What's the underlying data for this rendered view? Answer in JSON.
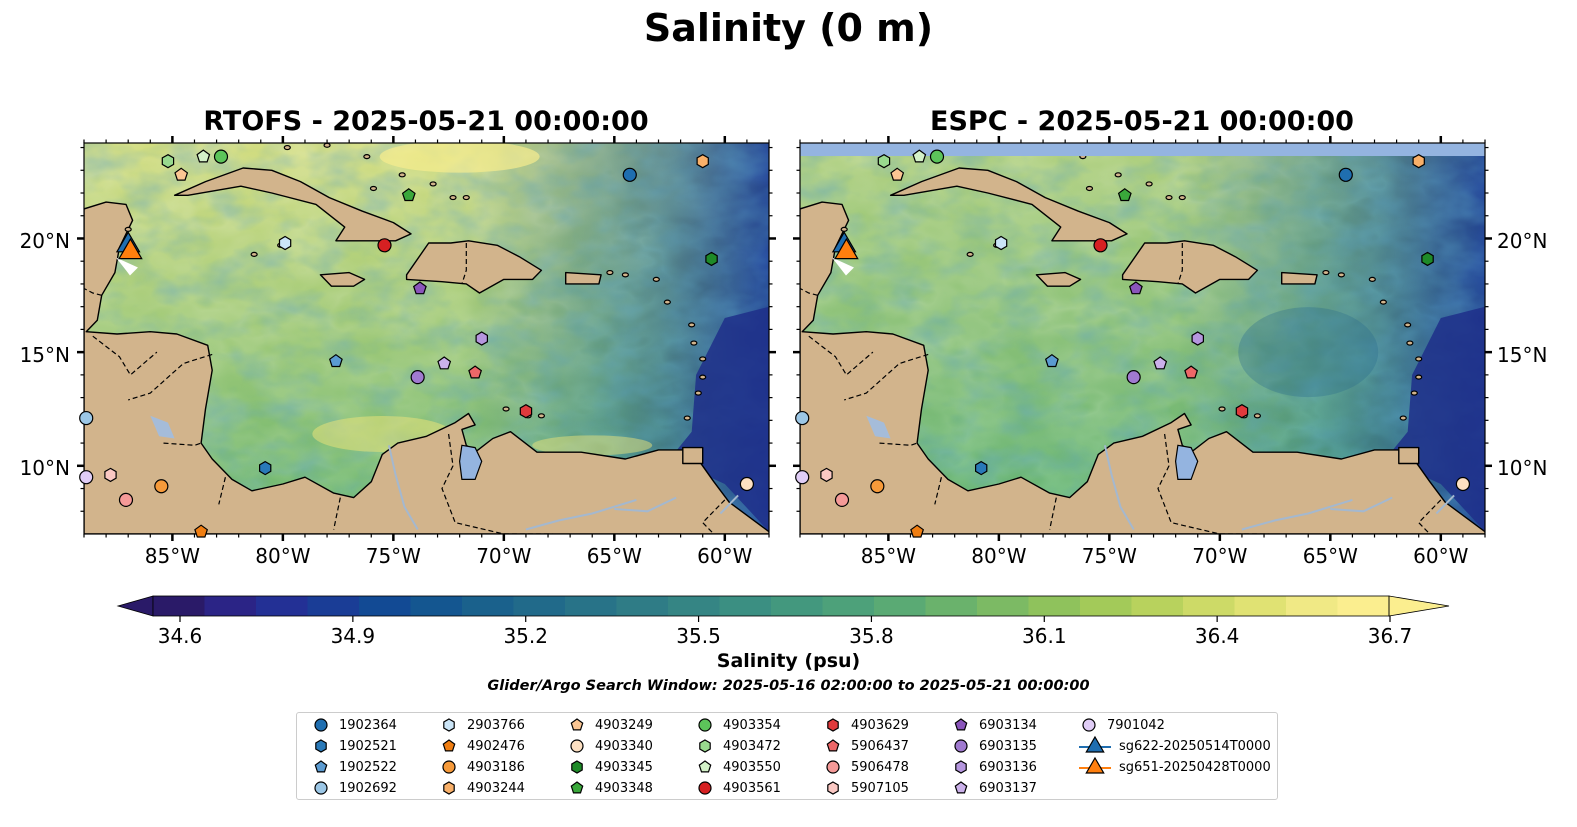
{
  "figure": {
    "title": "Salinity (0 m)",
    "search_window": "Glider/Argo Search Window: 2025-05-16 02:00:00 to 2025-05-21 00:00:00"
  },
  "panels": [
    {
      "title": "RTOFS - 2025-05-21 00:00:00"
    },
    {
      "title": "ESPC - 2025-05-21 00:00:00"
    }
  ],
  "axes": {
    "lon_labels": [
      "85°W",
      "80°W",
      "75°W",
      "70°W",
      "65°W",
      "60°W"
    ],
    "lon_values": [
      -85,
      -80,
      -75,
      -70,
      -65,
      -60
    ],
    "lat_labels": [
      "20°N",
      "15°N",
      "10°N"
    ],
    "lat_values": [
      20,
      15,
      10
    ],
    "lon_range": [
      -89,
      -58
    ],
    "lat_range": [
      7,
      24.2
    ]
  },
  "colorbar": {
    "label": "Salinity (psu)",
    "ticks": [
      "34.6",
      "34.9",
      "35.2",
      "35.5",
      "35.8",
      "36.1",
      "36.4",
      "36.7"
    ],
    "range": [
      34.6,
      36.7
    ],
    "extend": "both",
    "colormap": "haline",
    "colors": [
      "#2a1a68",
      "#2b2486",
      "#233095",
      "#1a3d96",
      "#124a94",
      "#145690",
      "#1a618c",
      "#216a8a",
      "#287388",
      "#2f7c86",
      "#358584",
      "#3b8f82",
      "#43987e",
      "#4da17a",
      "#5aaa74",
      "#6ab26c",
      "#7cba64",
      "#8fc25c",
      "#a3ca59",
      "#b8d25d",
      "#cdda67",
      "#e0e273",
      "#f0e985",
      "#fbee8f"
    ]
  },
  "legend": {
    "items": [
      {
        "label": "1902364",
        "marker": "circle",
        "color": "#1f6eb0"
      },
      {
        "label": "1902521",
        "marker": "hexagon",
        "color": "#2979b8"
      },
      {
        "label": "1902522",
        "marker": "pentagon",
        "color": "#5b9bd1"
      },
      {
        "label": "1902692",
        "marker": "circle",
        "color": "#9cc7e6"
      },
      {
        "label": "2903766",
        "marker": "hexagon",
        "color": "#cbe5f7"
      },
      {
        "label": "4902476",
        "marker": "pentagon",
        "color": "#f07e12"
      },
      {
        "label": "4903186",
        "marker": "circle",
        "color": "#f69a3a"
      },
      {
        "label": "4903244",
        "marker": "hexagon",
        "color": "#f9b069"
      },
      {
        "label": "4903249",
        "marker": "pentagon",
        "color": "#fbc693"
      },
      {
        "label": "4903340",
        "marker": "circle",
        "color": "#fde0c2"
      },
      {
        "label": "4903345",
        "marker": "hexagon",
        "color": "#1e8a28"
      },
      {
        "label": "4903348",
        "marker": "pentagon",
        "color": "#3aa83b"
      },
      {
        "label": "4903354",
        "marker": "circle",
        "color": "#5cc45a"
      },
      {
        "label": "4903472",
        "marker": "hexagon",
        "color": "#99da8e"
      },
      {
        "label": "4903550",
        "marker": "pentagon",
        "color": "#d4f2c8"
      },
      {
        "label": "4903561",
        "marker": "circle",
        "color": "#d62022"
      },
      {
        "label": "4903629",
        "marker": "hexagon",
        "color": "#e03a3c"
      },
      {
        "label": "5906437",
        "marker": "pentagon",
        "color": "#ee6768"
      },
      {
        "label": "5906478",
        "marker": "circle",
        "color": "#f59a98"
      },
      {
        "label": "5907105",
        "marker": "hexagon",
        "color": "#fac8c3"
      },
      {
        "label": "6903134",
        "marker": "pentagon",
        "color": "#8a55bb"
      },
      {
        "label": "6903135",
        "marker": "circle",
        "color": "#a07ad0"
      },
      {
        "label": "6903136",
        "marker": "hexagon",
        "color": "#b596de"
      },
      {
        "label": "6903137",
        "marker": "pentagon",
        "color": "#cbb1ea"
      },
      {
        "label": "7901042",
        "marker": "circle",
        "color": "#e0cdf6"
      },
      {
        "label": "sg622-20250514T0000",
        "marker": "triangle",
        "color": "#1f6eb0"
      },
      {
        "label": "sg651-20250428T0000",
        "marker": "triangle",
        "color": "#ff7f0e"
      }
    ]
  },
  "floats": [
    {
      "id": "1902364",
      "lon": -64.3,
      "lat": 22.8
    },
    {
      "id": "1902521",
      "lon": -80.8,
      "lat": 9.9
    },
    {
      "id": "1902522",
      "lon": -77.6,
      "lat": 14.6
    },
    {
      "id": "1902692",
      "lon": -88.9,
      "lat": 12.1
    },
    {
      "id": "2903766",
      "lon": -79.9,
      "lat": 19.8
    },
    {
      "id": "4902476",
      "lon": -83.7,
      "lat": 7.1
    },
    {
      "id": "4903186",
      "lon": -85.5,
      "lat": 9.1
    },
    {
      "id": "4903244",
      "lon": -61.0,
      "lat": 23.4
    },
    {
      "id": "4903249",
      "lon": -84.6,
      "lat": 22.8
    },
    {
      "id": "4903340",
      "lon": -59.0,
      "lat": 9.2
    },
    {
      "id": "4903345",
      "lon": -60.6,
      "lat": 19.1
    },
    {
      "id": "4903348",
      "lon": -74.3,
      "lat": 21.9
    },
    {
      "id": "4903354",
      "lon": -82.8,
      "lat": 23.6
    },
    {
      "id": "4903472",
      "lon": -85.2,
      "lat": 23.4
    },
    {
      "id": "4903550",
      "lon": -83.6,
      "lat": 23.6
    },
    {
      "id": "4903561",
      "lon": -75.4,
      "lat": 19.7
    },
    {
      "id": "4903629",
      "lon": -69.0,
      "lat": 12.4
    },
    {
      "id": "5906437",
      "lon": -71.3,
      "lat": 14.1
    },
    {
      "id": "5906478",
      "lon": -87.1,
      "lat": 8.5
    },
    {
      "id": "5907105",
      "lon": -87.8,
      "lat": 9.6
    },
    {
      "id": "6903134",
      "lon": -73.8,
      "lat": 17.8
    },
    {
      "id": "6903135",
      "lon": -73.9,
      "lat": 13.9
    },
    {
      "id": "6903136",
      "lon": -71.0,
      "lat": 15.6
    },
    {
      "id": "6903137",
      "lon": -72.7,
      "lat": 14.5
    },
    {
      "id": "7901042",
      "lon": -88.9,
      "lat": 9.5
    }
  ],
  "gliders": [
    {
      "id": "sg622-20250514T0000",
      "lon": -87.0,
      "lat": 19.7
    },
    {
      "id": "sg651-20250428T0000",
      "lon": -86.9,
      "lat": 19.4
    }
  ]
}
